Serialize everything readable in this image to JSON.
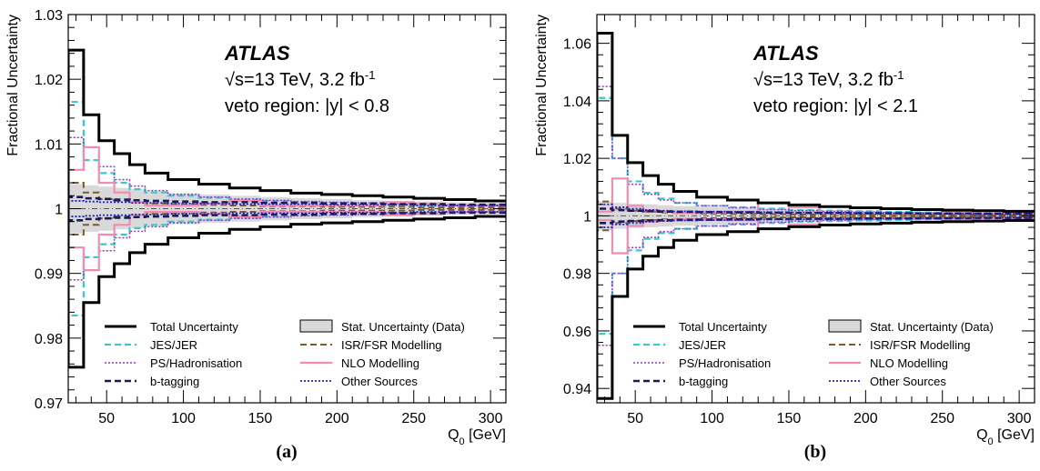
{
  "chart_data": [
    {
      "type": "line",
      "panel_caption": "(a)",
      "experiment": "ATLAS",
      "energy_label": "√s=13 TeV, 3.2 fb",
      "lumi_superscript": "-1",
      "region_label": "veto region: |y| < 0.8",
      "xlabel": "Q",
      "xlabel_sub": "0",
      "xlabel_unit": " [GeV]",
      "ylabel": "Fractional Uncertainty",
      "xlim": [
        25,
        310
      ],
      "ylim": [
        0.97,
        1.03
      ],
      "xticks": [
        50,
        100,
        150,
        200,
        250,
        300
      ],
      "xtick_labels": [
        "50",
        "100",
        "150",
        "200",
        "250",
        "300"
      ],
      "yticks": [
        0.97,
        0.98,
        0.99,
        1.0,
        1.01,
        1.02,
        1.03
      ],
      "ytick_labels": [
        "0.97",
        "0.98",
        "0.99",
        "1",
        "1.01",
        "1.02",
        "1.03"
      ],
      "bin_edges": [
        25,
        35,
        45,
        55,
        65,
        75,
        90,
        110,
        130,
        150,
        170,
        190,
        210,
        230,
        250,
        270,
        290,
        310
      ],
      "series": [
        {
          "name": "Total Uncertainty",
          "color": "#000000",
          "style": "solid",
          "width": 3,
          "values": [
            0.0245,
            0.0145,
            0.0105,
            0.0085,
            0.0068,
            0.0055,
            0.0045,
            0.0038,
            0.0032,
            0.0028,
            0.0024,
            0.0022,
            0.002,
            0.0018,
            0.0016,
            0.0014,
            0.0012
          ]
        },
        {
          "name": "Stat. Uncertainty (Data)",
          "color": "#d9d9d9",
          "style": "band",
          "values": [
            0.0038,
            0.0036,
            0.0034,
            0.0032,
            0.003,
            0.0027,
            0.0024,
            0.0022,
            0.002,
            0.0018,
            0.0016,
            0.0015,
            0.0013,
            0.0012,
            0.0011,
            0.001,
            0.0009
          ]
        },
        {
          "name": "JES/JER",
          "color": "#3cc8c8",
          "style": "dashed",
          "width": 2.2,
          "values": [
            0.0165,
            0.0075,
            0.0055,
            0.004,
            0.003,
            0.0025,
            0.002,
            0.0017,
            0.0014,
            0.0012,
            0.001,
            0.0009,
            0.0008,
            0.0007,
            0.0006,
            0.0005,
            0.0005
          ]
        },
        {
          "name": "ISR/FSR Modelling",
          "color": "#7a5a32",
          "style": "dashed",
          "width": 2,
          "values": [
            0.004,
            0.0025,
            0.0015,
            0.0012,
            0.001,
            0.0008,
            0.0007,
            0.0006,
            0.0005,
            0.0004,
            0.0004,
            0.0003,
            0.0003,
            0.0003,
            0.0002,
            0.0002,
            0.0002
          ]
        },
        {
          "name": "PS/Hadronisation",
          "color": "#9932cc",
          "style": "dotted",
          "width": 1.5,
          "values": [
            0.011,
            0.0095,
            0.0065,
            0.0045,
            0.0035,
            0.0028,
            0.0022,
            0.0018,
            0.0015,
            0.0013,
            0.0011,
            0.001,
            0.0009,
            0.0008,
            0.0007,
            0.0006,
            0.0005
          ]
        },
        {
          "name": "NLO Modelling",
          "color": "#f08cb4",
          "style": "solid",
          "width": 2.2,
          "values": [
            0.006,
            0.0095,
            0.004,
            0.0025,
            0.001,
            0.0005,
            0.0005,
            0.0008,
            0.0012,
            0.0005,
            0.0005,
            0.0005,
            0.0005,
            0.001,
            0.0008,
            0.0005,
            0.0005
          ]
        },
        {
          "name": "b-tagging",
          "color": "#1a1a5a",
          "style": "dashed",
          "width": 2.6,
          "values": [
            0.0018,
            0.0016,
            0.0015,
            0.0014,
            0.0013,
            0.0012,
            0.0011,
            0.001,
            0.001,
            0.0009,
            0.0009,
            0.0008,
            0.0008,
            0.0007,
            0.0007,
            0.0006,
            0.0006
          ]
        },
        {
          "name": "Other Sources",
          "color": "#2020c0",
          "style": "dotted",
          "width": 1.8,
          "values": [
            0.0012,
            0.0011,
            0.001,
            0.001,
            0.0009,
            0.0009,
            0.0008,
            0.0008,
            0.0007,
            0.0007,
            0.0007,
            0.0006,
            0.0006,
            0.0006,
            0.0005,
            0.0005,
            0.0005
          ]
        }
      ]
    },
    {
      "type": "line",
      "panel_caption": "(b)",
      "experiment": "ATLAS",
      "energy_label": "√s=13 TeV, 3.2 fb",
      "lumi_superscript": "-1",
      "region_label": "veto region: |y| < 2.1",
      "xlabel": "Q",
      "xlabel_sub": "0",
      "xlabel_unit": " [GeV]",
      "ylabel": "Fractional Uncertainty",
      "xlim": [
        25,
        310
      ],
      "ylim": [
        0.935,
        1.07
      ],
      "xticks": [
        50,
        100,
        150,
        200,
        250,
        300
      ],
      "xtick_labels": [
        "50",
        "100",
        "150",
        "200",
        "250",
        "300"
      ],
      "yticks": [
        0.94,
        0.96,
        0.98,
        1.0,
        1.02,
        1.04,
        1.06
      ],
      "ytick_labels": [
        "0.94",
        "0.96",
        "0.98",
        "1",
        "1.02",
        "1.04",
        "1.06"
      ],
      "bin_edges": [
        25,
        35,
        45,
        55,
        65,
        75,
        90,
        110,
        130,
        150,
        170,
        190,
        210,
        230,
        250,
        270,
        290,
        310
      ],
      "series": [
        {
          "name": "Total Uncertainty",
          "color": "#000000",
          "style": "solid",
          "width": 3,
          "values": [
            0.0635,
            0.028,
            0.0185,
            0.014,
            0.011,
            0.0085,
            0.0065,
            0.0055,
            0.0045,
            0.0038,
            0.0032,
            0.0028,
            0.0025,
            0.0022,
            0.002,
            0.0018,
            0.0016
          ]
        },
        {
          "name": "Stat. Uncertainty (Data)",
          "color": "#d9d9d9",
          "style": "band",
          "values": [
            0.005,
            0.0045,
            0.0042,
            0.004,
            0.0037,
            0.0034,
            0.003,
            0.0027,
            0.0024,
            0.0022,
            0.002,
            0.0018,
            0.0016,
            0.0015,
            0.0013,
            0.0012,
            0.0011
          ]
        },
        {
          "name": "JES/JER",
          "color": "#3cc8c8",
          "style": "dashed",
          "width": 2.2,
          "values": [
            0.041,
            0.02,
            0.012,
            0.008,
            0.006,
            0.0045,
            0.0035,
            0.003,
            0.0025,
            0.002,
            0.0018,
            0.0016,
            0.0014,
            0.0012,
            0.001,
            0.0009,
            0.0008
          ]
        },
        {
          "name": "ISR/FSR Modelling",
          "color": "#7a5a32",
          "style": "dashed",
          "width": 2,
          "values": [
            0.005,
            0.0025,
            0.0018,
            0.0015,
            0.0012,
            0.001,
            0.0008,
            0.0007,
            0.0006,
            0.0005,
            0.0005,
            0.0004,
            0.0004,
            0.0003,
            0.0003,
            0.0003,
            0.0002
          ]
        },
        {
          "name": "PS/Hadronisation",
          "color": "#9932cc",
          "style": "dotted",
          "width": 1.5,
          "values": [
            0.045,
            0.02,
            0.011,
            0.0075,
            0.0055,
            0.0045,
            0.0035,
            0.0028,
            0.0022,
            0.0018,
            0.0015,
            0.0013,
            0.0011,
            0.001,
            0.0009,
            0.0008,
            0.0007
          ]
        },
        {
          "name": "NLO Modelling",
          "color": "#f08cb4",
          "style": "solid",
          "width": 2.2,
          "values": [
            0.0015,
            0.013,
            0.0035,
            0.002,
            0.0015,
            0.001,
            0.0012,
            0.0015,
            0.0045,
            0.003,
            0.001,
            0.001,
            0.0008,
            0.001,
            0.0012,
            0.0008,
            0.0008
          ]
        },
        {
          "name": "b-tagging",
          "color": "#1a1a5a",
          "style": "dashed",
          "width": 2.6,
          "values": [
            0.0025,
            0.002,
            0.0018,
            0.0016,
            0.0015,
            0.0014,
            0.0013,
            0.0012,
            0.0011,
            0.001,
            0.001,
            0.0009,
            0.0009,
            0.0008,
            0.0008,
            0.0007,
            0.0007
          ]
        },
        {
          "name": "Other Sources",
          "color": "#2020c0",
          "style": "dotted",
          "width": 1.8,
          "values": [
            0.004,
            0.003,
            0.0025,
            0.002,
            0.0018,
            0.0016,
            0.0015,
            0.0014,
            0.0013,
            0.0012,
            0.0011,
            0.001,
            0.0009,
            0.0009,
            0.0008,
            0.0007,
            0.0007
          ]
        }
      ]
    }
  ],
  "legend_order": [
    "Total Uncertainty",
    "Stat. Uncertainty (Data)",
    "JES/JER",
    "ISR/FSR Modelling",
    "PS/Hadronisation",
    "NLO Modelling",
    "b-tagging",
    "Other Sources"
  ]
}
